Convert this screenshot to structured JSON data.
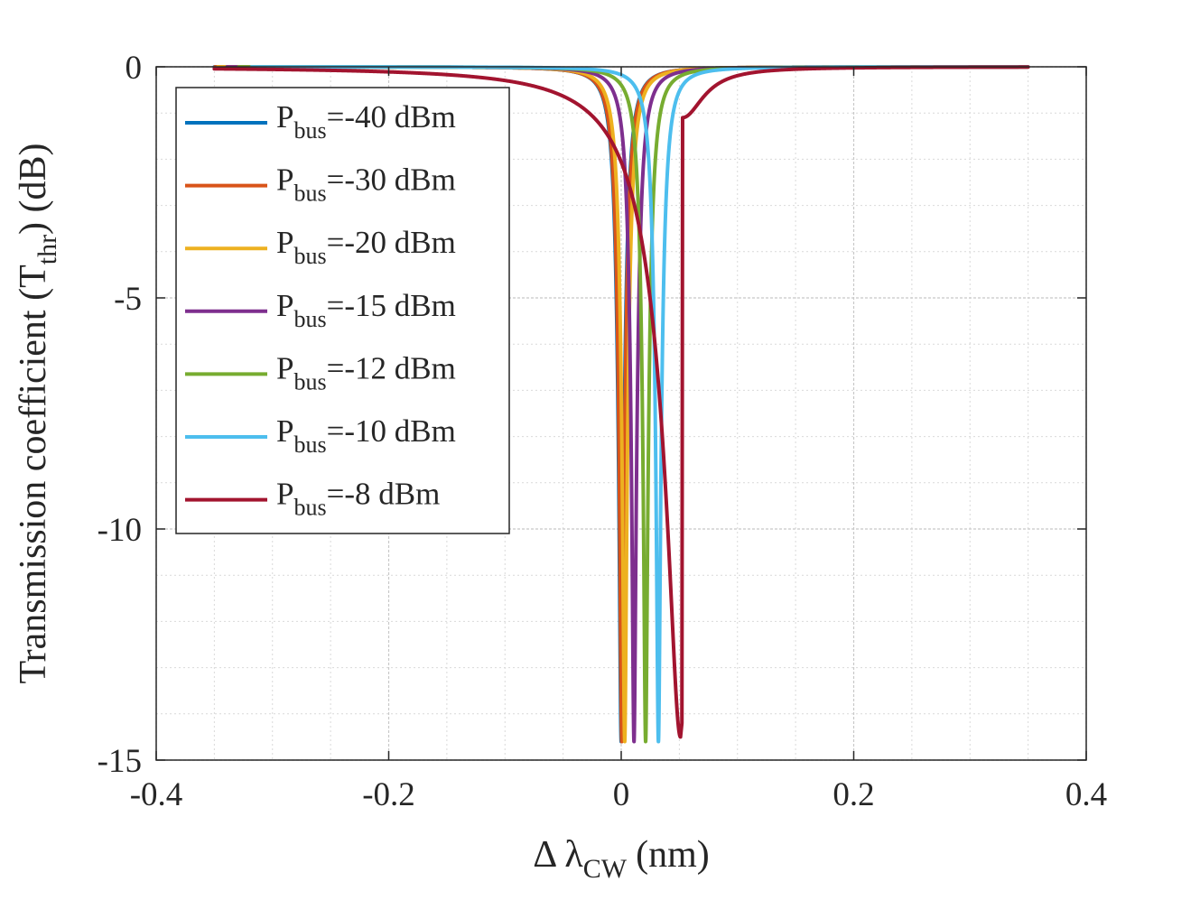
{
  "chart_data": {
    "type": "line",
    "title": "",
    "xlabel": {
      "main": "Δ λ",
      "sub": "CW",
      "unit": "(nm)"
    },
    "ylabel": {
      "main": "Transmission coefficient (T",
      "sub": "thr",
      "unit": ") (dB)"
    },
    "xlim": [
      -0.4,
      0.4
    ],
    "ylim": [
      -15,
      0
    ],
    "xticks": [
      -0.4,
      -0.2,
      0,
      0.2,
      0.4
    ],
    "xtick_labels": [
      "-0.4",
      "-0.2",
      "0",
      "0.2",
      "0.4"
    ],
    "yticks": [
      0,
      -5,
      -10,
      -15
    ],
    "ytick_labels": [
      "0",
      "-5",
      "-10",
      "-15"
    ],
    "grid": true,
    "minor_grid": true,
    "legend_position": "top-left",
    "x_range_plotted": [
      -0.35,
      0.35
    ],
    "line_width": 4,
    "series": [
      {
        "name_main": "P",
        "name_sub": "bus",
        "name_rest": "=-40 dBm",
        "color": "#0072BD",
        "resonance_nm": 0.0,
        "min_db": -14.6,
        "half_width_nm": 0.0066,
        "bistable_drop": false
      },
      {
        "name_main": "P",
        "name_sub": "bus",
        "name_rest": "=-30 dBm",
        "color": "#D95319",
        "resonance_nm": 0.0005,
        "min_db": -14.6,
        "half_width_nm": 0.0066,
        "bistable_drop": false
      },
      {
        "name_main": "P",
        "name_sub": "bus",
        "name_rest": "=-20 dBm",
        "color": "#EDB120",
        "resonance_nm": 0.003,
        "min_db": -14.6,
        "half_width_nm": 0.0066,
        "bistable_drop": false
      },
      {
        "name_main": "P",
        "name_sub": "bus",
        "name_rest": "=-15 dBm",
        "color": "#7E2F8E",
        "resonance_nm": 0.011,
        "min_db": -14.6,
        "half_width_nm": 0.0066,
        "bistable_drop": false
      },
      {
        "name_main": "P",
        "name_sub": "bus",
        "name_rest": "=-12 dBm",
        "color": "#77AC30",
        "resonance_nm": 0.021,
        "min_db": -14.6,
        "half_width_nm": 0.0066,
        "bistable_drop": false
      },
      {
        "name_main": "P",
        "name_sub": "bus",
        "name_rest": "=-10 dBm",
        "color": "#4DBEEE",
        "resonance_nm": 0.032,
        "min_db": -14.6,
        "half_width_nm": 0.0066,
        "bistable_drop": false
      },
      {
        "name_main": "P",
        "name_sub": "bus",
        "name_rest": "=-8 dBm",
        "color": "#A2142F",
        "resonance_nm": 0.051,
        "min_db": -14.5,
        "half_width_nm": 0.0066,
        "bistable_drop": true,
        "drop_top_db": -1.1
      }
    ]
  }
}
